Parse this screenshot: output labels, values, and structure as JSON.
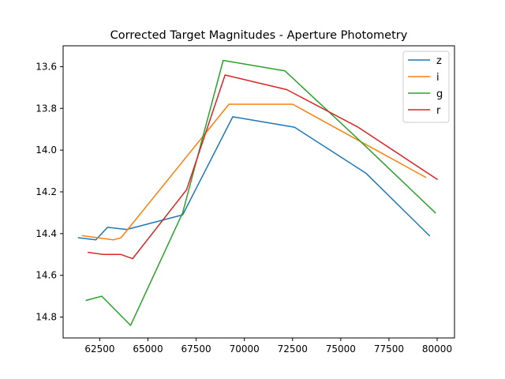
{
  "chart_data": {
    "type": "line",
    "title": "Corrected Target Magnitudes - Aperture Photometry",
    "xlabel": "",
    "ylabel": "",
    "xlim": [
      60600,
      80900
    ],
    "ylim": [
      14.9,
      13.5
    ],
    "y_inverted": true,
    "x_ticks": [
      62500,
      65000,
      67500,
      70000,
      72500,
      75000,
      77500,
      80000
    ],
    "x_tick_labels": [
      "62500",
      "65000",
      "67500",
      "70000",
      "72500",
      "75000",
      "77500",
      "80000"
    ],
    "y_ticks": [
      13.6,
      13.8,
      14.0,
      14.2,
      14.4,
      14.6,
      14.8
    ],
    "y_tick_labels": [
      "13.6",
      "13.8",
      "14.0",
      "14.2",
      "14.4",
      "14.6",
      "14.8"
    ],
    "grid": false,
    "legend_position": "top-right",
    "series": [
      {
        "name": "z",
        "color": "#1f77b4",
        "x": [
          61400,
          62300,
          62900,
          63900,
          66800,
          69400,
          72600,
          76300,
          79600
        ],
        "y": [
          14.42,
          14.43,
          14.37,
          14.38,
          14.31,
          13.84,
          13.89,
          14.11,
          14.41
        ]
      },
      {
        "name": "i",
        "color": "#ff7f0e",
        "x": [
          61600,
          62400,
          63200,
          63600,
          69200,
          72500,
          79400
        ],
        "y": [
          14.41,
          14.42,
          14.43,
          14.42,
          13.78,
          13.78,
          14.13
        ]
      },
      {
        "name": "g",
        "color": "#2ca02c",
        "x": [
          61800,
          62600,
          64100,
          66800,
          68900,
          72100,
          75700,
          79900
        ],
        "y": [
          14.72,
          14.7,
          14.84,
          14.3,
          13.57,
          13.62,
          13.93,
          14.3
        ]
      },
      {
        "name": "r",
        "color": "#d62728",
        "x": [
          61900,
          62700,
          63600,
          64200,
          67000,
          69000,
          72200,
          75900,
          80000
        ],
        "y": [
          14.49,
          14.5,
          14.5,
          14.52,
          14.19,
          13.64,
          13.71,
          13.89,
          14.14
        ]
      }
    ]
  }
}
